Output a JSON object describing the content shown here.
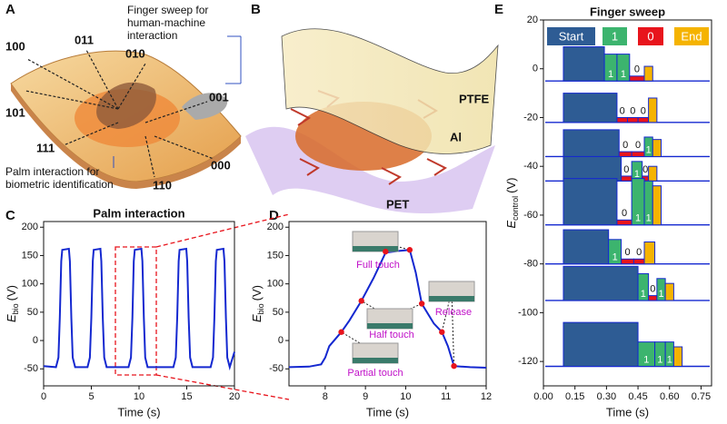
{
  "panel_labels": [
    "A",
    "B",
    "C",
    "D",
    "E"
  ],
  "illustration_a": {
    "codes": [
      "100",
      "011",
      "010",
      "101",
      "001",
      "111",
      "000",
      "110"
    ],
    "finger_note": [
      "Finger sweep for",
      "human-machine",
      "interaction"
    ],
    "palm_note": [
      "Palm interaction for",
      "biometric identification"
    ]
  },
  "illustration_b": {
    "layers": [
      "PTFE",
      "Al",
      "PET"
    ]
  },
  "chart_data": [
    {
      "type": "line",
      "title": "Palm interaction",
      "xlabel": "Time (s)",
      "ylabel": {
        "symbol": "E",
        "subscript": "bio",
        "unit": "(V)"
      },
      "color": "#1428d0",
      "x": [
        0,
        1.3,
        1.55,
        1.7,
        1.85,
        1.95,
        2.65,
        2.75,
        2.9,
        3.05,
        3.3,
        4.6,
        4.85,
        5.0,
        5.15,
        5.25,
        5.95,
        6.05,
        6.2,
        6.35,
        6.6,
        8.9,
        9.15,
        9.3,
        9.45,
        9.55,
        10.25,
        10.35,
        10.5,
        10.65,
        10.9,
        13.6,
        13.85,
        14.0,
        14.15,
        14.25,
        14.95,
        15.05,
        15.2,
        15.35,
        15.6,
        17.5,
        17.75,
        17.9,
        18.05,
        18.15,
        18.85,
        18.95,
        19.1,
        19.25,
        19.5,
        20
      ],
      "values": [
        -45,
        -47,
        -30,
        40,
        140,
        160,
        162,
        140,
        40,
        -30,
        -47,
        -47,
        -30,
        40,
        140,
        160,
        162,
        140,
        40,
        -30,
        -47,
        -47,
        -30,
        40,
        140,
        160,
        162,
        140,
        40,
        -30,
        -47,
        -47,
        -30,
        40,
        140,
        160,
        162,
        140,
        40,
        -30,
        -47,
        -47,
        -30,
        40,
        140,
        160,
        162,
        140,
        40,
        -30,
        -47,
        -20
      ],
      "xlim": [
        0,
        20
      ],
      "xticks": [
        0,
        5,
        10,
        15,
        20
      ],
      "ylim": [
        -80,
        210
      ],
      "yticks": [
        -50,
        0,
        50,
        100,
        150,
        200
      ]
    },
    {
      "type": "line",
      "xlabel": "Time (s)",
      "ylabel": {
        "symbol": "E",
        "subscript": "bio",
        "unit": "(V)"
      },
      "color": "#1428d0",
      "x": [
        7.1,
        7.6,
        7.9,
        8.0,
        8.1,
        8.4,
        8.6,
        8.9,
        9.2,
        9.5,
        9.8,
        10.1,
        10.25,
        10.4,
        10.7,
        10.9,
        11.05,
        11.2,
        11.6,
        12
      ],
      "values": [
        -47,
        -46,
        -42,
        -30,
        -10,
        15,
        35,
        70,
        110,
        155,
        158,
        160,
        120,
        65,
        30,
        15,
        -10,
        -45,
        -47,
        -48
      ],
      "points": {
        "color": "#e8141c",
        "x": [
          8.4,
          8.9,
          9.5,
          10.1,
          10.4,
          10.9,
          11.2
        ],
        "values": [
          15,
          70,
          157,
          160,
          65,
          15,
          -45
        ]
      },
      "annotations": [
        "Full touch",
        "Half touch",
        "Release",
        "Partial touch"
      ],
      "xlim": [
        7.1,
        12
      ],
      "xticks": [
        8,
        9,
        10,
        11,
        12
      ],
      "ylim": [
        -80,
        210
      ],
      "yticks": [
        -50,
        0,
        50,
        100,
        150,
        200
      ]
    },
    {
      "type": "waveforms",
      "title": "Finger sweep",
      "xlabel": "Time (s)",
      "ylabel": {
        "symbol": "E",
        "subscript": "control",
        "unit": "(V)"
      },
      "color": "#1428d0",
      "legend": [
        {
          "label": "Start",
          "color": "#2e5c94"
        },
        {
          "label": "1",
          "color": "#3cb46e"
        },
        {
          "label": "0",
          "color": "#e8141c"
        },
        {
          "label": "End",
          "color": "#f5b300"
        }
      ],
      "traces": [
        {
          "baseline": -5,
          "segments": [
            {
              "color": "#2e5c94",
              "x": [
                0.095,
                0.29
              ],
              "top": 9
            },
            {
              "label": "1",
              "color": "#3cb46e",
              "x": [
                0.29,
                0.35
              ],
              "top": 6
            },
            {
              "label": "1",
              "color": "#3cb46e",
              "x": [
                0.35,
                0.41
              ],
              "top": 6
            },
            {
              "label": "0",
              "color": "#e8141c",
              "x": [
                0.41,
                0.48
              ],
              "top": -3
            },
            {
              "color": "#f5b300",
              "x": [
                0.48,
                0.52
              ],
              "top": 1
            }
          ]
        },
        {
          "baseline": -22,
          "segments": [
            {
              "color": "#2e5c94",
              "x": [
                0.095,
                0.35
              ],
              "top": -10
            },
            {
              "label": "0",
              "color": "#e8141c",
              "x": [
                0.35,
                0.4
              ],
              "top": -20
            },
            {
              "label": "0",
              "color": "#e8141c",
              "x": [
                0.4,
                0.45
              ],
              "top": -20
            },
            {
              "label": "0",
              "color": "#e8141c",
              "x": [
                0.45,
                0.5
              ],
              "top": -20
            },
            {
              "color": "#f5b300",
              "x": [
                0.5,
                0.54
              ],
              "top": -12
            }
          ]
        },
        {
          "baseline": -36,
          "segments": [
            {
              "color": "#2e5c94",
              "x": [
                0.095,
                0.36
              ],
              "top": -25
            },
            {
              "label": "0",
              "color": "#e8141c",
              "x": [
                0.36,
                0.42
              ],
              "top": -34
            },
            {
              "label": "0",
              "color": "#e8141c",
              "x": [
                0.42,
                0.48
              ],
              "top": -34
            },
            {
              "label": "1",
              "color": "#3cb46e",
              "x": [
                0.48,
                0.52
              ],
              "top": -28
            },
            {
              "color": "#f5b300",
              "x": [
                0.52,
                0.56
              ],
              "top": -29
            }
          ]
        },
        {
          "baseline": -46,
          "segments": [
            {
              "color": "#2e5c94",
              "x": [
                0.095,
                0.37
              ],
              "top": -36
            },
            {
              "label": "0",
              "color": "#e8141c",
              "x": [
                0.37,
                0.42
              ],
              "top": -44
            },
            {
              "label": "1",
              "color": "#3cb46e",
              "x": [
                0.42,
                0.47
              ],
              "top": -38
            },
            {
              "label": "0",
              "color": "#e8141c",
              "x": [
                0.47,
                0.5
              ],
              "top": -44
            },
            {
              "color": "#f5b300",
              "x": [
                0.5,
                0.54
              ],
              "top": -40
            }
          ]
        },
        {
          "baseline": -64,
          "segments": [
            {
              "color": "#2e5c94",
              "x": [
                0.095,
                0.35
              ],
              "top": -45
            },
            {
              "label": "0",
              "color": "#e8141c",
              "x": [
                0.35,
                0.42
              ],
              "top": -62
            },
            {
              "label": "1",
              "color": "#3cb46e",
              "x": [
                0.42,
                0.48
              ],
              "top": -45
            },
            {
              "label": "1",
              "color": "#3cb46e",
              "x": [
                0.48,
                0.52
              ],
              "top": -46
            },
            {
              "color": "#f5b300",
              "x": [
                0.52,
                0.56
              ],
              "top": -48
            }
          ]
        },
        {
          "baseline": -80,
          "segments": [
            {
              "color": "#2e5c94",
              "x": [
                0.095,
                0.31
              ],
              "top": -66
            },
            {
              "label": "1",
              "color": "#3cb46e",
              "x": [
                0.31,
                0.37
              ],
              "top": -70
            },
            {
              "label": "0",
              "color": "#e8141c",
              "x": [
                0.37,
                0.43
              ],
              "top": -78
            },
            {
              "label": "0",
              "color": "#e8141c",
              "x": [
                0.43,
                0.48
              ],
              "top": -78
            },
            {
              "color": "#f5b300",
              "x": [
                0.48,
                0.53
              ],
              "top": -71
            }
          ]
        },
        {
          "baseline": -95,
          "segments": [
            {
              "color": "#2e5c94",
              "x": [
                0.095,
                0.45
              ],
              "top": -81
            },
            {
              "label": "1",
              "color": "#3cb46e",
              "x": [
                0.45,
                0.5
              ],
              "top": -84
            },
            {
              "label": "0",
              "color": "#e8141c",
              "x": [
                0.5,
                0.54
              ],
              "top": -93
            },
            {
              "label": "1",
              "color": "#3cb46e",
              "x": [
                0.54,
                0.58
              ],
              "top": -86
            },
            {
              "color": "#f5b300",
              "x": [
                0.58,
                0.62
              ],
              "top": -88
            }
          ]
        },
        {
          "baseline": -122,
          "segments": [
            {
              "color": "#2e5c94",
              "x": [
                0.095,
                0.45
              ],
              "top": -104
            },
            {
              "label": "1",
              "color": "#3cb46e",
              "x": [
                0.45,
                0.53
              ],
              "top": -112
            },
            {
              "label": "1",
              "color": "#3cb46e",
              "x": [
                0.53,
                0.58
              ],
              "top": -112
            },
            {
              "label": "1",
              "color": "#3cb46e",
              "x": [
                0.58,
                0.62
              ],
              "top": -112
            },
            {
              "color": "#f5b300",
              "x": [
                0.62,
                0.66
              ],
              "top": -114
            }
          ]
        }
      ],
      "xlim": [
        0,
        0.8
      ],
      "xticks": [
        {
          "value": 0,
          "label": "0.00"
        },
        0.15,
        {
          "value": 0.3,
          "label": "0.30"
        },
        0.45,
        {
          "value": 0.6,
          "label": "0.60"
        },
        0.75
      ],
      "ylim": [
        -130,
        20
      ],
      "yticks": [
        -120,
        -100,
        -80,
        -60,
        -40,
        -20,
        0,
        20
      ]
    }
  ]
}
